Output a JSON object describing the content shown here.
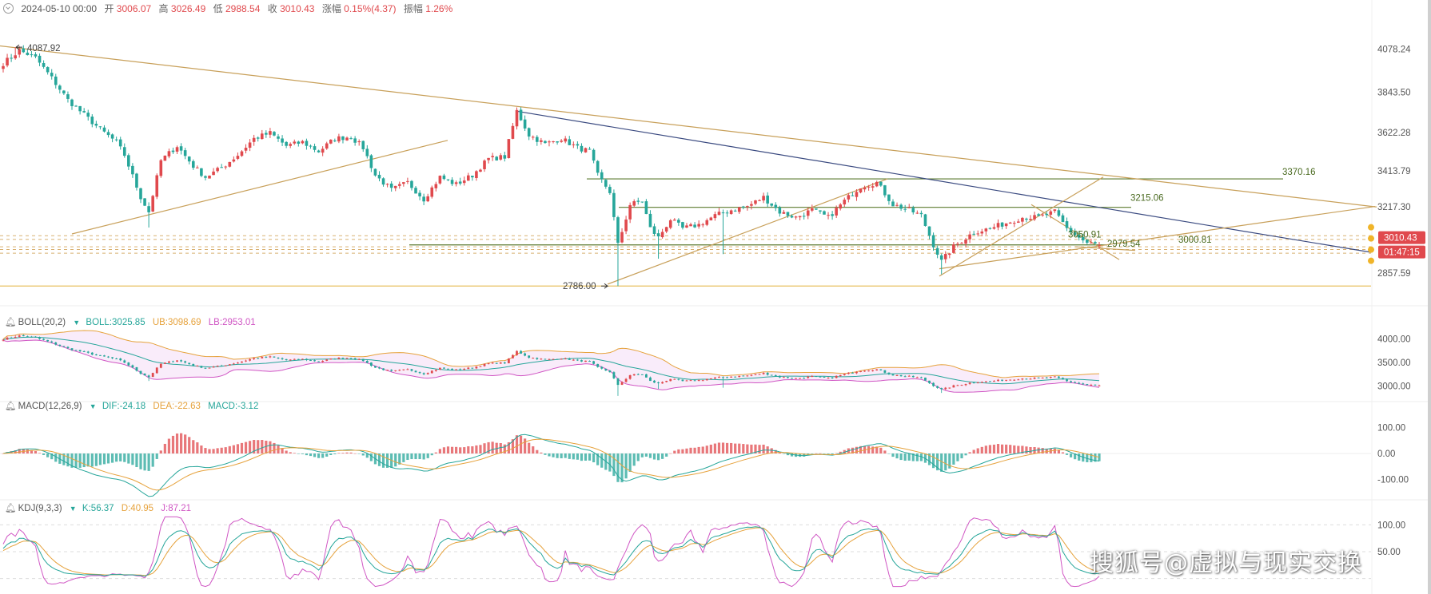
{
  "header": {
    "date": "2024-05-10 00:00",
    "items": [
      {
        "label": "开",
        "value": "3006.07"
      },
      {
        "label": "高",
        "value": "3026.49"
      },
      {
        "label": "低",
        "value": "2988.54"
      },
      {
        "label": "收",
        "value": "3010.43"
      },
      {
        "label": "涨幅",
        "value": "0.15%(4.37)"
      },
      {
        "label": "振幅",
        "value": "1.26%"
      }
    ]
  },
  "colors": {
    "up": "#e0494d",
    "down": "#26a69a",
    "trend": "#c8a05a",
    "level": "#5b7a2f",
    "navy": "#3a4a80",
    "price_tag": "#e0494d"
  },
  "chart_data": [
    {
      "type": "candlestick",
      "name": "main",
      "y_ticks": [
        "4078.24",
        "3843.50",
        "3622.28",
        "3413.79",
        "3217.30",
        "2857.59"
      ],
      "ylim": [
        2700,
        4180
      ],
      "anchors": [
        [
          0,
          4000
        ],
        [
          4,
          4070
        ],
        [
          8,
          4030
        ],
        [
          12,
          3920
        ],
        [
          16,
          3800
        ],
        [
          20,
          3720
        ],
        [
          24,
          3640
        ],
        [
          28,
          3570
        ],
        [
          30,
          3500
        ],
        [
          34,
          3270
        ],
        [
          36,
          3190
        ],
        [
          39,
          3470
        ],
        [
          43,
          3550
        ],
        [
          47,
          3440
        ],
        [
          50,
          3380
        ],
        [
          54,
          3430
        ],
        [
          58,
          3500
        ],
        [
          62,
          3590
        ],
        [
          66,
          3620
        ],
        [
          70,
          3550
        ],
        [
          74,
          3570
        ],
        [
          78,
          3520
        ],
        [
          82,
          3590
        ],
        [
          86,
          3600
        ],
        [
          89,
          3540
        ],
        [
          92,
          3390
        ],
        [
          96,
          3310
        ],
        [
          100,
          3350
        ],
        [
          104,
          3260
        ],
        [
          108,
          3380
        ],
        [
          112,
          3340
        ],
        [
          116,
          3390
        ],
        [
          120,
          3480
        ],
        [
          124,
          3490
        ],
        [
          127,
          3740
        ],
        [
          130,
          3610
        ],
        [
          134,
          3560
        ],
        [
          138,
          3590
        ],
        [
          142,
          3540
        ],
        [
          145,
          3520
        ],
        [
          147,
          3390
        ],
        [
          150,
          3300
        ],
        [
          152,
          3010
        ],
        [
          155,
          3230
        ],
        [
          158,
          3250
        ],
        [
          160,
          3100
        ],
        [
          162,
          3050
        ],
        [
          165,
          3150
        ],
        [
          168,
          3100
        ],
        [
          172,
          3120
        ],
        [
          176,
          3170
        ],
        [
          180,
          3200
        ],
        [
          184,
          3220
        ],
        [
          188,
          3270
        ],
        [
          192,
          3190
        ],
        [
          196,
          3160
        ],
        [
          200,
          3200
        ],
        [
          204,
          3160
        ],
        [
          208,
          3250
        ],
        [
          212,
          3330
        ],
        [
          216,
          3350
        ],
        [
          220,
          3230
        ],
        [
          224,
          3200
        ],
        [
          227,
          3170
        ],
        [
          230,
          3010
        ],
        [
          232,
          2920
        ],
        [
          235,
          3000
        ],
        [
          240,
          3080
        ],
        [
          244,
          3100
        ],
        [
          248,
          3130
        ],
        [
          252,
          3160
        ],
        [
          256,
          3160
        ],
        [
          260,
          3190
        ],
        [
          263,
          3100
        ],
        [
          266,
          3050
        ],
        [
          268,
          3020
        ],
        [
          271,
          3010
        ]
      ],
      "annotations": [
        {
          "text": "4087.92"
        },
        {
          "text": "2786.00"
        },
        {
          "text": "3370.16"
        },
        {
          "text": "3215.06"
        },
        {
          "text": "3050.91"
        },
        {
          "text": "2979.54"
        },
        {
          "text": "3000.81"
        }
      ],
      "current_price": "3010.43",
      "countdown": "01:47:15"
    },
    {
      "type": "line",
      "name": "BOLL(20,2)",
      "indicator": "BOLL",
      "params": "(20,2)",
      "values": [
        {
          "name": "BOLL",
          "value": "3025.85",
          "color": "#26a69a"
        },
        {
          "name": "UB",
          "value": "3098.69",
          "color": "#e6a23c"
        },
        {
          "name": "LB",
          "value": "2953.01",
          "color": "#d056c4"
        }
      ],
      "y_ticks": [
        "4000.00",
        "3500.00",
        "3000.00"
      ],
      "ylim": [
        2750,
        4250
      ]
    },
    {
      "type": "bar",
      "name": "MACD(12,26,9)",
      "indicator": "MACD",
      "params": "(12,26,9)",
      "values": [
        {
          "name": "DIF",
          "value": "-24.18",
          "color": "#26a69a"
        },
        {
          "name": "DEA",
          "value": "-22.63",
          "color": "#e6a23c"
        },
        {
          "name": "MACD",
          "value": "-3.12",
          "color": "#2a9d8f"
        }
      ],
      "y_ticks": [
        "100.00",
        "0.00",
        "-100.00"
      ],
      "ylim": [
        -160,
        160
      ]
    },
    {
      "type": "line",
      "name": "KDJ(9,3,3)",
      "indicator": "KDJ",
      "params": "(9,3,3)",
      "values": [
        {
          "name": "K",
          "value": "56.37",
          "color": "#26a69a"
        },
        {
          "name": "D",
          "value": "40.95",
          "color": "#e6a23c"
        },
        {
          "name": "J",
          "value": "87.21",
          "color": "#d056c4"
        }
      ],
      "y_ticks": [
        "100.00",
        "50.00"
      ],
      "ylim": [
        -20,
        120
      ]
    }
  ],
  "watermark": "搜狐号@虚拟与现实交换"
}
